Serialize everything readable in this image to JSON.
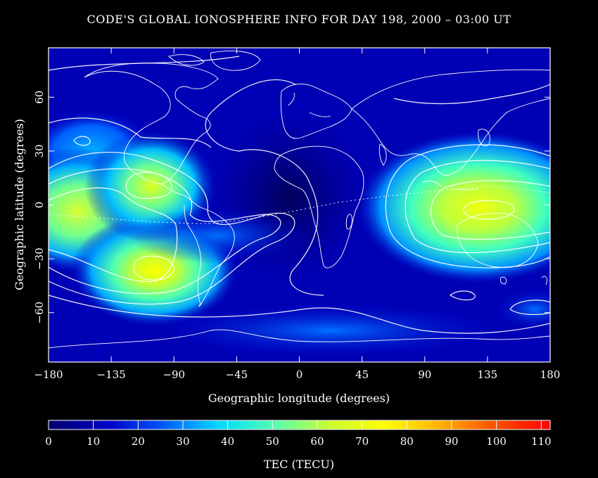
{
  "title": "CODE'S GLOBAL IONOSPHERE INFO FOR DAY 198, 2000 – 03:00 UT",
  "x_axis": {
    "label": "Geographic longitude (degrees)",
    "ticks": [
      -180,
      -135,
      -90,
      -45,
      0,
      45,
      90,
      135,
      180
    ],
    "tick_labels": [
      "−180",
      "−135",
      "−90",
      "−45",
      "0",
      "45",
      "90",
      "135",
      "180"
    ],
    "range": [
      -180,
      180
    ]
  },
  "y_axis": {
    "label": "Geographic latitude (degrees)",
    "ticks": [
      -60,
      -30,
      0,
      30,
      60
    ],
    "tick_labels": [
      "−60",
      "−30",
      "0",
      "30",
      "60"
    ],
    "range": [
      -87.5,
      87.5
    ]
  },
  "colorbar": {
    "label": "TEC (TECU)",
    "ticks": [
      0,
      10,
      20,
      30,
      40,
      50,
      60,
      70,
      80,
      90,
      100,
      110
    ],
    "tick_labels": [
      "0",
      "10",
      "20",
      "30",
      "40",
      "50",
      "60",
      "70",
      "80",
      "90",
      "100",
      "110"
    ],
    "range": [
      0,
      112
    ],
    "stops": [
      "#00006a",
      "#0000c8",
      "#0050ff",
      "#00d8ff",
      "#50ffb0",
      "#c8ff30",
      "#ffff00",
      "#ffa000",
      "#ff3000",
      "#ff0000"
    ]
  },
  "chart_data": {
    "type": "heatmap",
    "description_units": "TEC in TECU",
    "peaks": [
      {
        "lon": -105,
        "lat": -37,
        "tec": 80
      },
      {
        "lon": -112,
        "lat": 12,
        "tec": 62
      },
      {
        "lon": -170,
        "lat": -2,
        "tec": 58
      },
      {
        "lon": 140,
        "lat": -3,
        "tec": 72
      },
      {
        "lon": -160,
        "lat": 35,
        "tec": 32
      }
    ],
    "contour_levels": [
      10,
      20,
      30,
      40,
      50,
      60,
      70
    ],
    "coastlines": "white"
  }
}
